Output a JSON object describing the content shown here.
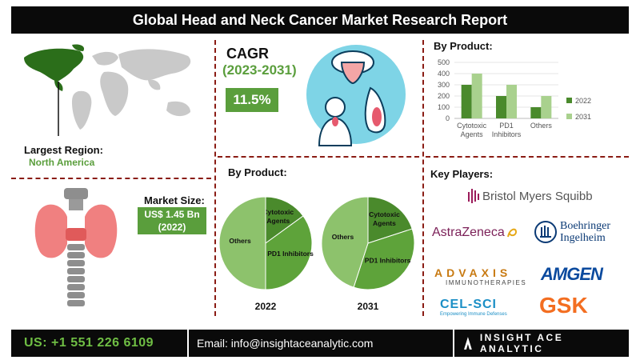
{
  "header": {
    "title": "Global Head and Neck Cancer Market Research Report"
  },
  "region": {
    "label": "Largest Region:",
    "value": "North America"
  },
  "market_size": {
    "label": "Market Size:",
    "value_line1": "US$ 1.45 Bn",
    "value_line2": "(2022)"
  },
  "cagr": {
    "label": "CAGR",
    "period": "(2023-2031)",
    "value": "11.5%"
  },
  "pies": {
    "heading": "By Product:"
  },
  "bars": {
    "heading": "By Product:"
  },
  "key_players": {
    "heading": "Key Players:",
    "companies": [
      "Bristol Myers Squibb",
      "AstraZeneca",
      "Boehringer",
      "Ingelheim",
      "ADVAXIS",
      "IMMUNOTHERAPIES",
      "AMGEN",
      "CEL-SCI",
      "Empowering Immune Defenses",
      "GSK"
    ]
  },
  "footer": {
    "phone": "US: +1 551 226 6109",
    "email": "Email: info@insightaceanalytic.com",
    "brand": "INSIGHT ACE ANALYTIC"
  },
  "colors": {
    "green_dark": "#4a8a2c",
    "green_light": "#a9d18e",
    "pie_mid": "#5ea33a",
    "pie_light": "#8dc26c",
    "accent_red": "#8a1c14"
  },
  "chart_data": [
    {
      "type": "bar",
      "title": "By Product:",
      "categories": [
        "Cytotoxic Agents",
        "PD1 Inhibitors",
        "Others"
      ],
      "series": [
        {
          "name": "2022",
          "values": [
            300,
            200,
            100
          ]
        },
        {
          "name": "2031",
          "values": [
            400,
            300,
            200
          ]
        }
      ],
      "ylim": [
        0,
        500
      ],
      "yticks": [
        0,
        100,
        200,
        300,
        400,
        500
      ],
      "legend": "right"
    },
    {
      "type": "pie",
      "title": "2022",
      "labels": [
        "Cytotoxic Agents",
        "PD1 Inhibitors",
        "Others"
      ],
      "values": [
        15,
        35,
        50
      ]
    },
    {
      "type": "pie",
      "title": "2031",
      "labels": [
        "Cytotoxic Agents",
        "PD1 Inhibitors",
        "Others"
      ],
      "values": [
        20,
        35,
        45
      ]
    }
  ]
}
